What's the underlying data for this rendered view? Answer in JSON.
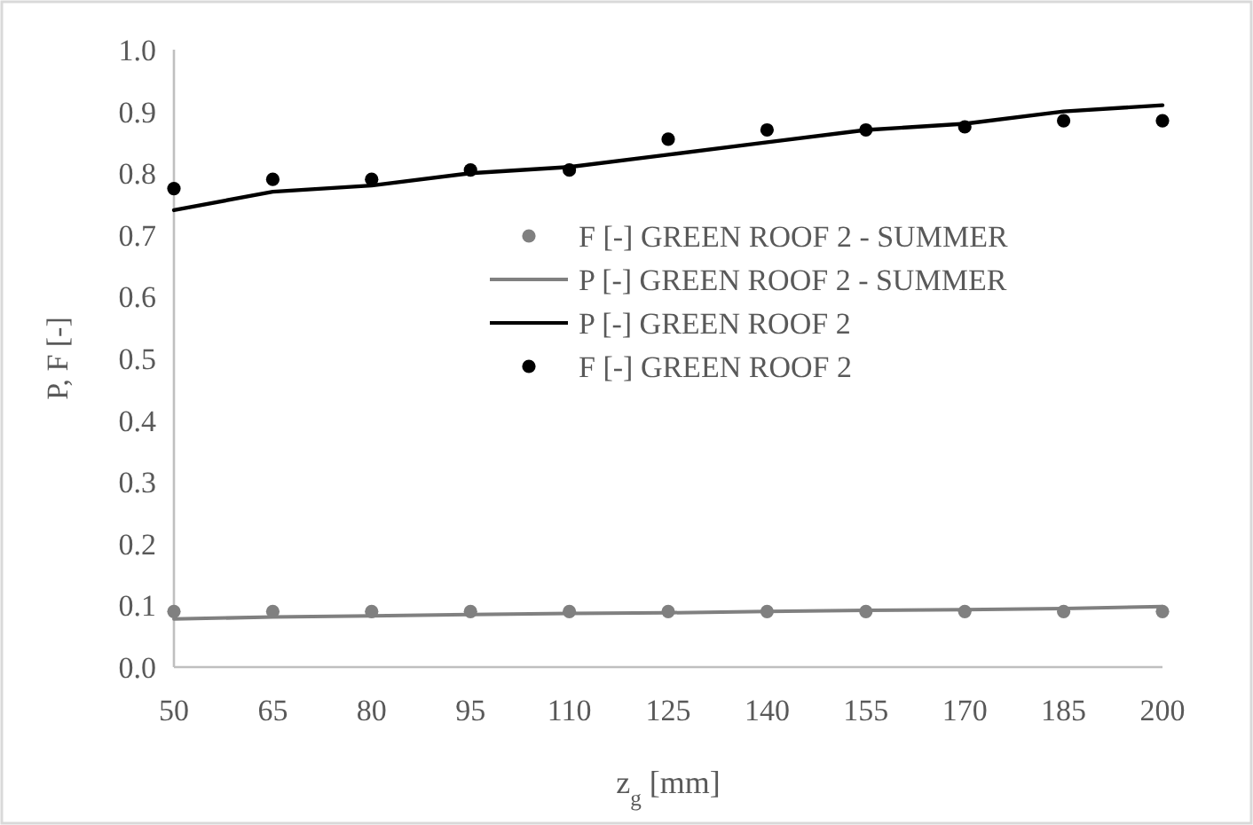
{
  "chart_data": {
    "type": "line",
    "xlabel": "z$_{g}$ [mm]",
    "ylabel": "P, F [-]",
    "categories": [
      "50",
      "65",
      "80",
      "95",
      "110",
      "125",
      "140",
      "155",
      "170",
      "185",
      "200"
    ],
    "ylim": [
      0,
      1
    ],
    "yticks": [
      {
        "value": 0,
        "label": "0.0"
      },
      0.1,
      0.2,
      0.3,
      0.4,
      0.5,
      0.6,
      0.7,
      0.8,
      0.9,
      {
        "value": 1,
        "label": "1.0"
      }
    ],
    "grid": false,
    "legend": "right",
    "series": [
      {
        "name": "F [-] GREEN ROOF 2 - SUMMER",
        "type": "scatter",
        "marker": "circle",
        "color": "#808080",
        "values": [
          0.09,
          0.09,
          0.09,
          0.09,
          0.09,
          0.09,
          0.09,
          0.09,
          0.09,
          0.09,
          0.09
        ]
      },
      {
        "name": "P [-] GREEN ROOF 2 - SUMMER",
        "color": "#808080",
        "values": [
          0.078,
          0.081,
          0.083,
          0.085,
          0.087,
          0.088,
          0.09,
          0.092,
          0.093,
          0.095,
          0.098
        ]
      },
      {
        "name": "P [-] GREEN ROOF 2",
        "color": "#000000",
        "values": [
          0.74,
          0.77,
          0.78,
          0.8,
          0.81,
          0.83,
          0.85,
          0.87,
          0.88,
          0.9,
          0.91
        ]
      },
      {
        "name": "F [-] GREEN ROOF 2",
        "type": "scatter",
        "marker": "circle",
        "color": "#000000",
        "values": [
          0.775,
          0.79,
          0.79,
          0.805,
          0.805,
          0.855,
          0.87,
          0.87,
          0.875,
          0.885,
          0.885
        ]
      }
    ]
  }
}
